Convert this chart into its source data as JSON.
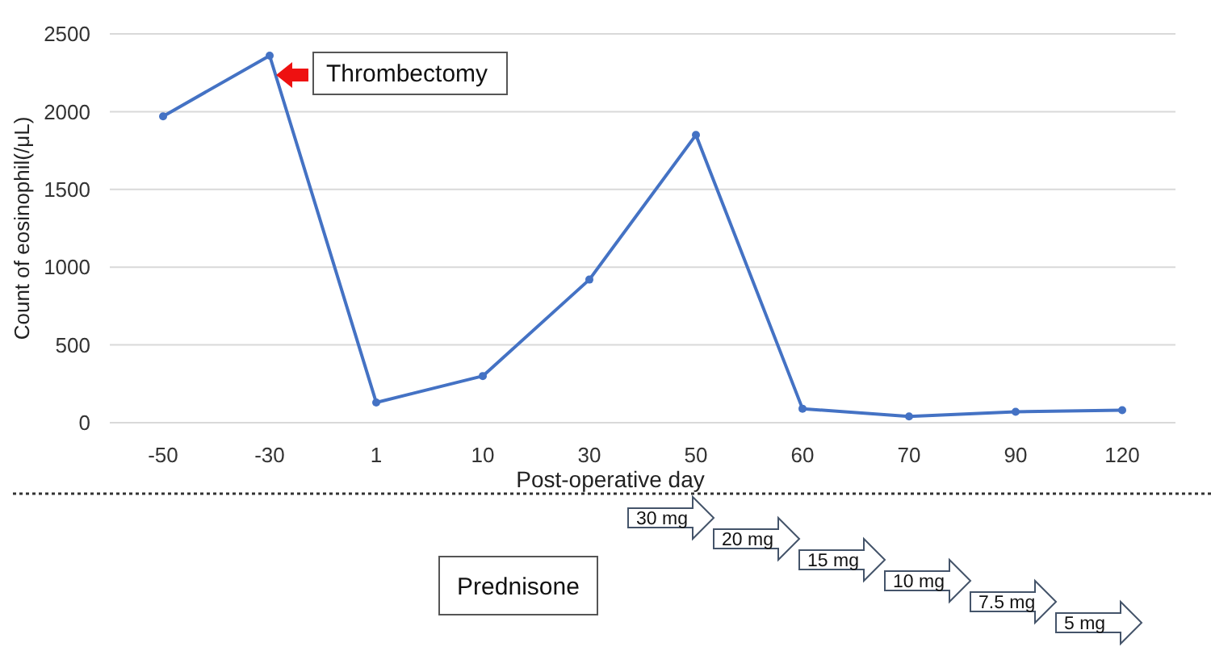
{
  "chart_data": {
    "type": "line",
    "xlabel": "Post-operative day",
    "ylabel": "Count of eosinophil(/μL)",
    "categories": [
      "-50",
      "-30",
      "1",
      "10",
      "30",
      "50",
      "60",
      "70",
      "90",
      "120"
    ],
    "series": [
      {
        "color": "#4472c4",
        "values": [
          1970,
          2360,
          130,
          300,
          920,
          1850,
          90,
          40,
          70,
          80
        ]
      }
    ],
    "ylim": [
      0,
      2500
    ],
    "yticks": [
      0,
      500,
      1000,
      1500,
      2000,
      2500
    ],
    "grid": "y",
    "marker": "circle",
    "line_style": "solid",
    "annotations": [
      {
        "text": "Thrombectomy",
        "x": "-30",
        "y": 2360
      },
      "Prednisone",
      "30 mg",
      "20 mg",
      "15 mg",
      "10 mg",
      "7.5 mg",
      "5 mg"
    ]
  }
}
